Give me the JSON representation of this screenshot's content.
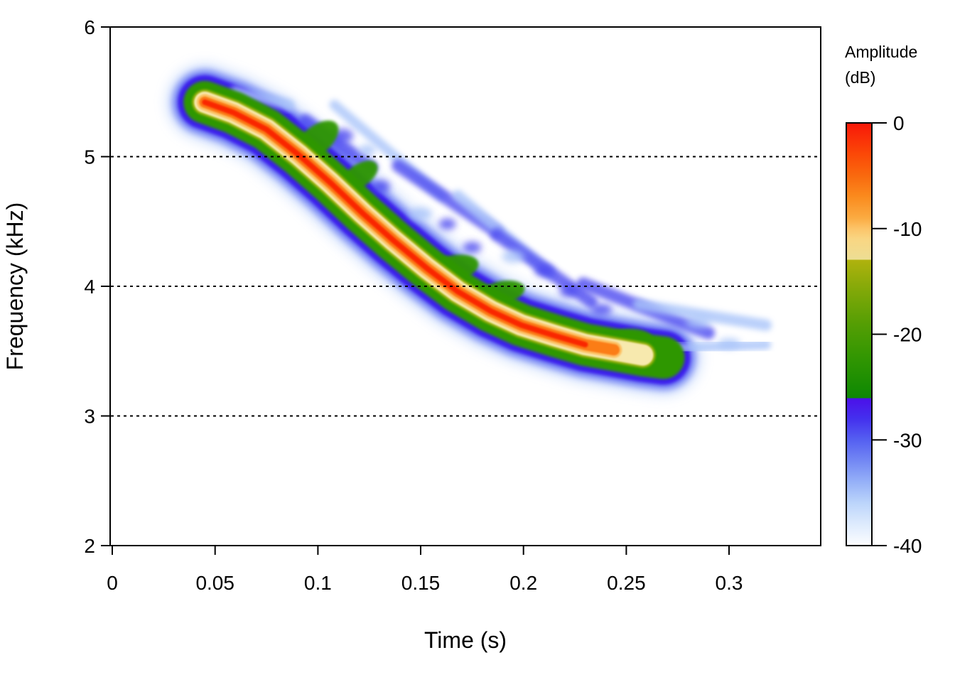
{
  "figure": {
    "x_axis": {
      "label": "Time (s)",
      "ticks": [
        "0",
        "0.05",
        "0.1",
        "0.15",
        "0.2",
        "0.25",
        "0.3"
      ]
    },
    "y_axis": {
      "label": "Frequency (kHz)",
      "ticks": [
        "6",
        "5",
        "4",
        "3",
        "2"
      ]
    },
    "legend": {
      "title_line1": "Amplitude",
      "title_line2": "(dB)",
      "ticks": [
        "0",
        "-10",
        "-20",
        "-30",
        "-40"
      ]
    }
  },
  "chart_data": {
    "type": "heatmap",
    "title": "",
    "xlabel": "Time (s)",
    "ylabel": "Frequency (kHz)",
    "xlim": [
      0,
      0.345
    ],
    "ylim": [
      2,
      6
    ],
    "x_ticks": [
      0,
      0.05,
      0.1,
      0.15,
      0.2,
      0.25,
      0.3
    ],
    "y_ticks": [
      6,
      5,
      4,
      3,
      2
    ],
    "gridlines_khz": [
      6,
      5,
      4,
      3
    ],
    "grid_style": "dotted",
    "legend_position": "right",
    "colorbar": {
      "label": "Amplitude (dB)",
      "range_db": [
        -40,
        0
      ],
      "ticks": [
        0,
        -10,
        -20,
        -30,
        -40
      ],
      "stops": [
        [
          0,
          "#F81708"
        ],
        [
          -3,
          "#FB4907"
        ],
        [
          -5,
          "#F9690E"
        ],
        [
          -7,
          "#FA8B1E"
        ],
        [
          -9,
          "#FBAB42"
        ],
        [
          -10,
          "#FCC469"
        ],
        [
          -11,
          "#F9D683"
        ],
        [
          -12.9,
          "#EDDE94"
        ],
        [
          -13,
          "#AFB20D"
        ],
        [
          -16,
          "#7FA808"
        ],
        [
          -19,
          "#559E04"
        ],
        [
          -22,
          "#349702"
        ],
        [
          -25,
          "#178C02"
        ],
        [
          -26,
          "#0E8805"
        ],
        [
          -26.1,
          "#4B10E9"
        ],
        [
          -28,
          "#4430EE"
        ],
        [
          -30,
          "#5560F1"
        ],
        [
          -32,
          "#7388F4"
        ],
        [
          -34,
          "#96B1F8"
        ],
        [
          -36,
          "#BCD5FB"
        ],
        [
          -38,
          "#DEEBFD"
        ],
        [
          -40,
          "#FCFDFF"
        ]
      ]
    },
    "signal": "descending frequency-modulated chirp",
    "ridge_time_freq": [
      [
        0.045,
        5.42
      ],
      [
        0.059,
        5.34
      ],
      [
        0.075,
        5.21
      ],
      [
        0.091,
        5.01
      ],
      [
        0.106,
        4.8
      ],
      [
        0.122,
        4.56
      ],
      [
        0.137,
        4.35
      ],
      [
        0.153,
        4.14
      ],
      [
        0.168,
        3.96
      ],
      [
        0.184,
        3.81
      ],
      [
        0.199,
        3.7
      ],
      [
        0.215,
        3.62
      ],
      [
        0.23,
        3.55
      ],
      [
        0.244,
        3.51
      ],
      [
        0.258,
        3.47
      ],
      [
        0.268,
        3.45
      ]
    ],
    "echoes": [
      [
        0.06,
        5.5,
        0.086,
        5.4,
        "light",
        16
      ],
      [
        0.094,
        5.28,
        0.126,
        4.92,
        "mid",
        18
      ],
      [
        0.108,
        5.4,
        0.16,
        4.7,
        "light",
        14
      ],
      [
        0.139,
        4.93,
        0.187,
        4.42,
        "mid",
        18
      ],
      [
        0.168,
        4.7,
        0.213,
        4.1,
        "light",
        16
      ],
      [
        0.187,
        4.4,
        0.233,
        3.88,
        "mid",
        18
      ],
      [
        0.229,
        4.02,
        0.29,
        3.64,
        "mid",
        18
      ],
      [
        0.256,
        3.86,
        0.318,
        3.7,
        "light",
        16
      ],
      [
        0.27,
        3.52,
        0.318,
        3.55,
        "light",
        14
      ]
    ],
    "blue_blobs": [
      [
        0.112,
        5.16,
        15,
        10,
        "mid"
      ],
      [
        0.124,
        5.05,
        12,
        8,
        "light"
      ],
      [
        0.131,
        4.77,
        12,
        9,
        "mid"
      ],
      [
        0.15,
        4.56,
        16,
        9,
        "light"
      ],
      [
        0.163,
        4.48,
        12,
        8,
        "mid"
      ],
      [
        0.175,
        4.3,
        13,
        8,
        "mid"
      ],
      [
        0.195,
        4.23,
        16,
        9,
        "light"
      ],
      [
        0.21,
        4.12,
        13,
        8,
        "mid"
      ],
      [
        0.222,
        3.96,
        13,
        8,
        "mid"
      ],
      [
        0.238,
        3.82,
        15,
        8,
        "mid"
      ],
      [
        0.253,
        3.62,
        12,
        7,
        "mid"
      ],
      [
        0.285,
        3.72,
        18,
        8,
        "light"
      ],
      [
        0.3,
        3.56,
        16,
        7,
        "light"
      ]
    ],
    "green_patches": [
      [
        0.099,
        5.12,
        38,
        20,
        -40
      ],
      [
        0.12,
        4.85,
        30,
        16,
        -35
      ],
      [
        0.163,
        4.12,
        45,
        20,
        -15
      ],
      [
        0.189,
        3.95,
        34,
        16,
        -12
      ],
      [
        0.249,
        3.57,
        40,
        18,
        -8
      ]
    ],
    "band_colors": {
      "red_core": "#F92605",
      "orange": "#FB7D13",
      "light_orange": "#FCC367",
      "cream": "#F7E9AE",
      "olive": "#9CB20B",
      "green": "#2E9703",
      "deep_blue": "#3B1DEC",
      "mid_blue": "#5E6CF2",
      "light_blue": "#AFC9FA"
    }
  }
}
